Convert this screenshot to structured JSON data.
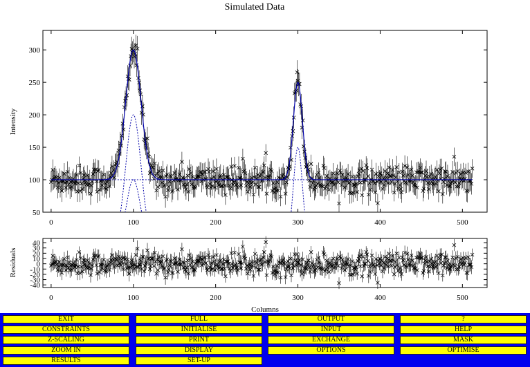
{
  "chart_data": [
    {
      "type": "scatter",
      "title": "Simulated Data",
      "ylabel": "Intensity",
      "xlim": [
        -10,
        530
      ],
      "ylim": [
        50,
        330
      ],
      "x_ticks": [
        0,
        100,
        200,
        300,
        400,
        500
      ],
      "y_ticks": [
        50,
        100,
        150,
        200,
        250,
        300
      ],
      "x_tick_labels": [
        "0",
        "100",
        "200",
        "300",
        "400",
        "500"
      ],
      "y_tick_labels": [
        "50",
        "100",
        "150",
        "200",
        "250",
        "300"
      ],
      "baseline": 100,
      "noise_amplitude": 12,
      "x_range": [
        0,
        512
      ],
      "peaks": [
        {
          "center": 100,
          "height": 200,
          "fwhm": 22
        },
        {
          "center": 300,
          "height": 150,
          "fwhm": 13
        }
      ],
      "component_peaks": [
        {
          "center": 100,
          "height": 200,
          "fwhm": 22
        },
        {
          "center": 100,
          "height": 100,
          "fwhm": 20
        },
        {
          "center": 300,
          "height": 150,
          "fwhm": 13
        }
      ],
      "series": [
        {
          "style": "cross-markers-with-error-bars",
          "color": "#000000"
        },
        {
          "style": "solid-fit-line",
          "color": "#0000aa"
        },
        {
          "style": "dashed-components",
          "color": "#0000aa"
        }
      ]
    },
    {
      "type": "scatter",
      "xlabel": "Columns",
      "ylabel": "Residuals",
      "xlim": [
        -10,
        530
      ],
      "ylim": [
        -45,
        48
      ],
      "x_ticks": [
        0,
        100,
        200,
        300,
        400,
        500
      ],
      "y_ticks": [
        -40,
        -30,
        -20,
        -10,
        0,
        10,
        20,
        30,
        40
      ],
      "x_tick_labels": [
        "0",
        "100",
        "200",
        "300",
        "400",
        "500"
      ],
      "y_tick_labels": [
        "-40",
        "-30",
        "-20",
        "-10",
        "0",
        "10",
        "20",
        "30",
        "40"
      ],
      "noise_amplitude": 12,
      "x_range": [
        0,
        512
      ]
    }
  ],
  "menu": {
    "buttons": [
      [
        "EXIT",
        "FULL",
        "OUTPUT",
        "?"
      ],
      [
        "CONSTRAINTS",
        "INITIALISE",
        "INPUT",
        "HELP"
      ],
      [
        "Z-SCALING",
        "PRINT",
        "EXCHANGE",
        "MASK"
      ],
      [
        "ZOOM IN",
        "DISPLAY",
        "OPTIONS",
        "OPTIMISE"
      ],
      [
        "RESULTS",
        "SET-UP"
      ]
    ],
    "colors": {
      "background": "#0000ee",
      "button": "#ffff00",
      "text": "#000000"
    }
  }
}
